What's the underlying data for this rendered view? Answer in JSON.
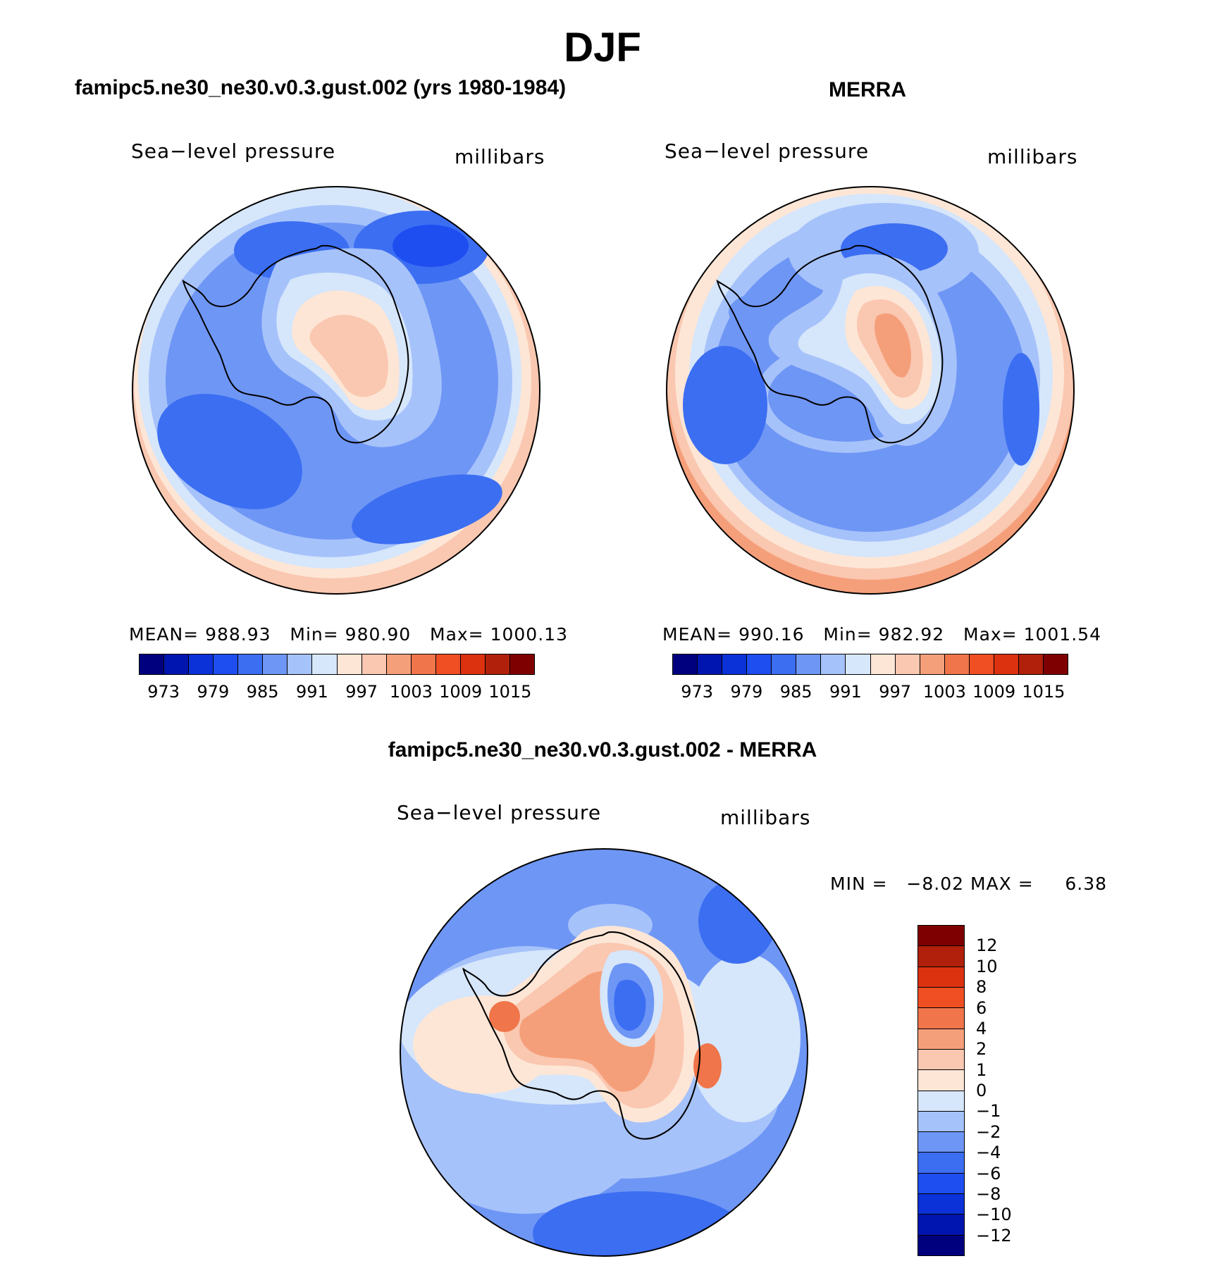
{
  "title": "DJF",
  "panels": [
    {
      "title": "famipc5.ne30_ne30.v0.3.gust.002 (yrs 1980-1984)",
      "variable": "Sea−level pressure",
      "units": "millibars",
      "mean_label": "MEAN=",
      "mean": "988.93",
      "min_label": "Min=",
      "min": "980.90",
      "max_label": "Max=",
      "max": "1000.13"
    },
    {
      "title": "MERRA",
      "variable": "Sea−level pressure",
      "units": "millibars",
      "mean_label": "MEAN=",
      "mean": "990.16",
      "min_label": "Min=",
      "min": "982.92",
      "max_label": "Max=",
      "max": "1001.54"
    }
  ],
  "diff_panel": {
    "title": "famipc5.ne30_ne30.v0.3.gust.002 - MERRA",
    "variable": "Sea−level pressure",
    "units": "millibars",
    "min_label": "MIN =",
    "min": "−8.02",
    "max_label": "MAX =",
    "max": "6.38"
  },
  "colorbar_abs": {
    "ticks": [
      "973",
      "979",
      "985",
      "991",
      "997",
      "1003",
      "1009",
      "1015"
    ],
    "colors": [
      "#00007f",
      "#0015b0",
      "#0a32d8",
      "#1e4ef0",
      "#3c6ef2",
      "#6e96f5",
      "#a6c2fa",
      "#d6e6fb",
      "#fde6d6",
      "#fac7b0",
      "#f59f7a",
      "#f0754a",
      "#f04e23",
      "#dc3210",
      "#b0200a",
      "#7f0000"
    ]
  },
  "colorbar_diff": {
    "ticks": [
      "12",
      "10",
      "8",
      "6",
      "4",
      "2",
      "1",
      "0",
      "−1",
      "−2",
      "−4",
      "−6",
      "−8",
      "−10",
      "−12"
    ],
    "colors": [
      "#7f0000",
      "#b0200a",
      "#dc3210",
      "#f04e23",
      "#f0754a",
      "#f59f7a",
      "#fac7b0",
      "#fde6d6",
      "#d6e6fb",
      "#a6c2fa",
      "#6e96f5",
      "#3c6ef2",
      "#1e4ef0",
      "#0a32d8",
      "#0015b0",
      "#00007f"
    ]
  },
  "chart_data": {
    "type": "heatmap",
    "projection": "south polar stereographic",
    "region": "Antarctica / Southern Ocean",
    "season": "DJF",
    "maps": [
      {
        "name": "famipc5.ne30_ne30.v0.3.gust.002 (yrs 1980-1984)",
        "mean": 988.93,
        "min": 980.9,
        "max": 1000.13,
        "levels": [
          973,
          979,
          985,
          991,
          997,
          1003,
          1009,
          1015
        ]
      },
      {
        "name": "MERRA",
        "mean": 990.16,
        "min": 982.92,
        "max": 1001.54,
        "levels": [
          973,
          979,
          985,
          991,
          997,
          1003,
          1009,
          1015
        ]
      },
      {
        "name": "famipc5.ne30_ne30.v0.3.gust.002 - MERRA",
        "min": -8.02,
        "max": 6.38,
        "levels": [
          -12,
          -10,
          -8,
          -6,
          -4,
          -2,
          -1,
          0,
          1,
          2,
          4,
          6,
          8,
          10,
          12
        ]
      }
    ]
  }
}
